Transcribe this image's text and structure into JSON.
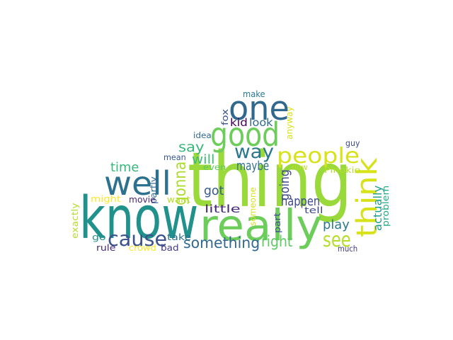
{
  "words": [
    {
      "text": "thing",
      "color": "#9ad93a",
      "rotate": false
    },
    {
      "text": "know",
      "color": "#21918c",
      "rotate": false
    },
    {
      "text": "really",
      "color": "#6ccd5a",
      "rotate": false
    },
    {
      "text": "one",
      "color": "#31688e",
      "rotate": false
    },
    {
      "text": "good",
      "color": "#6ccd5a",
      "rotate": false
    },
    {
      "text": "well",
      "color": "#2c728e",
      "rotate": false
    },
    {
      "text": "people",
      "color": "#d8e219",
      "rotate": false
    },
    {
      "text": "think",
      "color": "#d8e219",
      "rotate": true
    },
    {
      "text": "way",
      "color": "#2a788e",
      "rotate": false
    },
    {
      "text": "cause",
      "color": "#3b528b",
      "rotate": false
    },
    {
      "text": "see",
      "color": "#b5de2b",
      "rotate": false
    },
    {
      "text": "something",
      "color": "#31688e",
      "rotate": false
    },
    {
      "text": "right",
      "color": "#5ec962",
      "rotate": false
    },
    {
      "text": "gonna",
      "color": "#addc30",
      "rotate": true
    },
    {
      "text": "say",
      "color": "#35b779",
      "rotate": false
    },
    {
      "text": "time",
      "color": "#35b779",
      "rotate": false
    },
    {
      "text": "will",
      "color": "#3fbc73",
      "rotate": false
    },
    {
      "text": "maybe",
      "color": "#2e6f8e",
      "rotate": false
    },
    {
      "text": "happen",
      "color": "#3e4989",
      "rotate": false
    },
    {
      "text": "play",
      "color": "#2a788e",
      "rotate": false
    },
    {
      "text": "got",
      "color": "#38598c",
      "rotate": false
    },
    {
      "text": "little",
      "color": "#482878",
      "rotate": false
    },
    {
      "text": "kid",
      "color": "#440154",
      "rotate": false
    },
    {
      "text": "look",
      "color": "#31688e",
      "rotate": false
    },
    {
      "text": "going",
      "color": "#3e4989",
      "rotate": true
    },
    {
      "text": "actually",
      "color": "#1f9e89",
      "rotate": true
    },
    {
      "text": "problem",
      "color": "#25ab82",
      "rotate": true
    },
    {
      "text": "anyway",
      "color": "#d8e219",
      "rotate": true
    },
    {
      "text": "fox",
      "color": "#3b528b",
      "rotate": true
    },
    {
      "text": "make",
      "color": "#2a788e",
      "rotate": false
    },
    {
      "text": "idea",
      "color": "#31688e",
      "rotate": false
    },
    {
      "text": "mean",
      "color": "#38598c",
      "rotate": false
    },
    {
      "text": "even",
      "color": "#5ec962",
      "rotate": false
    },
    {
      "text": "now",
      "color": "#b5de2b",
      "rotate": false
    },
    {
      "text": "Pinokio",
      "color": "#b5de2b",
      "rotate": false
    },
    {
      "text": "guy",
      "color": "#3e4989",
      "rotate": false
    },
    {
      "text": "partly",
      "color": "#31688e",
      "rotate": true
    },
    {
      "text": "might",
      "color": "#fde725",
      "rotate": false
    },
    {
      "text": "movie",
      "color": "#482878",
      "rotate": false
    },
    {
      "text": "want",
      "color": "#b5de2b",
      "rotate": false
    },
    {
      "text": "someone",
      "color": "#d8e219",
      "rotate": true
    },
    {
      "text": "part",
      "color": "#3b528b",
      "rotate": true
    },
    {
      "text": "tell",
      "color": "#3e4989",
      "rotate": false
    },
    {
      "text": "exactly",
      "color": "#b5de2b",
      "rotate": true
    },
    {
      "text": "go",
      "color": "#21918c",
      "rotate": false
    },
    {
      "text": "take",
      "color": "#2e6f8e",
      "rotate": false
    },
    {
      "text": "rule",
      "color": "#482878",
      "rotate": false
    },
    {
      "text": "crowd",
      "color": "#fde725",
      "rotate": false
    },
    {
      "text": "bad",
      "color": "#443983",
      "rotate": false
    },
    {
      "text": "much",
      "color": "#443983",
      "rotate": false
    }
  ]
}
